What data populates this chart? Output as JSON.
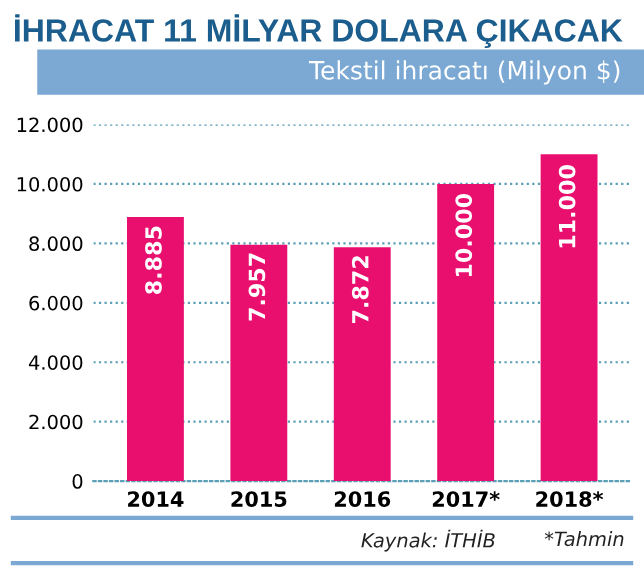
{
  "chart_data": {
    "type": "bar",
    "title": "İHRACAT 11 MİLYAR DOLARA ÇIKACAK",
    "subtitle": "Tekstil ihracatı (Milyon $)",
    "categories": [
      "2014",
      "2015",
      "2016",
      "2017*",
      "2018*"
    ],
    "values": [
      8885,
      7957,
      7872,
      10000,
      11000
    ],
    "value_labels": [
      "8.885",
      "7.957",
      "7.872",
      "10.000",
      "11.000"
    ],
    "color": "#e90f6f",
    "ylim": [
      0,
      12000
    ],
    "yticks": [
      0,
      {
        "value": 2000,
        "label": "2.000"
      },
      {
        "value": 4000,
        "label": "4.000"
      },
      {
        "value": 6000,
        "label": "6.000"
      },
      {
        "value": 8000,
        "label": "8.000"
      },
      {
        "value": 10000,
        "label": "10.000"
      },
      {
        "value": 12000,
        "label": "12.000"
      }
    ],
    "grid": "y",
    "annotations": [
      "Kaynak: İTHİB",
      "*Tahmin"
    ]
  }
}
